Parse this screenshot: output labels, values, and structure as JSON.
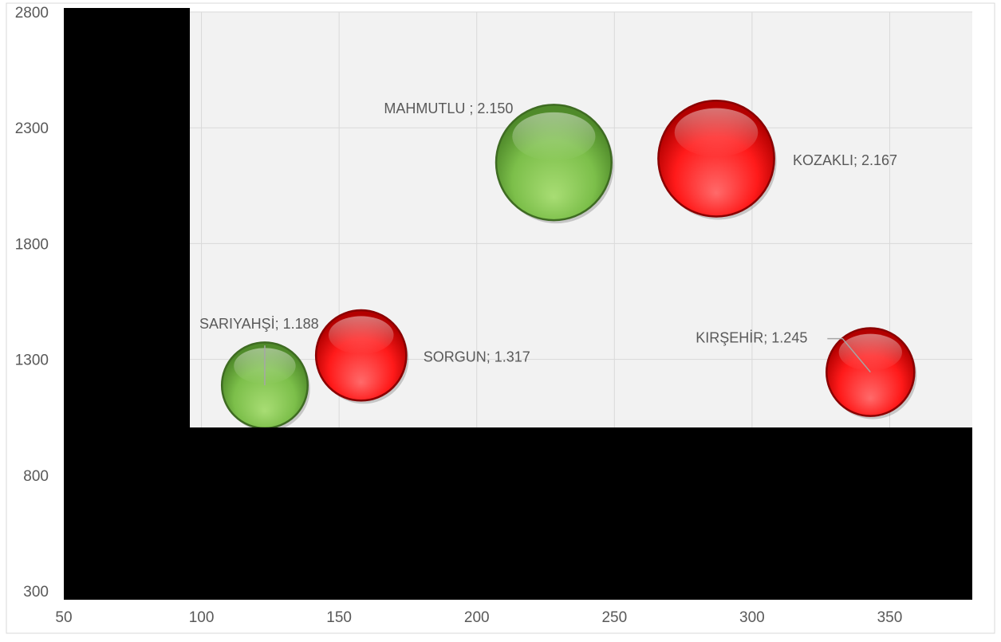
{
  "chart_data": {
    "type": "bubble",
    "xlim": [
      50,
      380
    ],
    "ylim": [
      300,
      2800
    ],
    "x_ticks": [
      "50",
      "100",
      "150",
      "200",
      "250",
      "300",
      "350"
    ],
    "y_ticks": [
      "300",
      "800",
      "1300",
      "1800",
      "2300",
      "2800"
    ],
    "grid": true,
    "colors": {
      "green": "#7cbf4a",
      "red": "#ff1a1a",
      "plot_bg": "#f2f2f2",
      "grid": "#d9d9d9",
      "label": "#595959"
    },
    "points": [
      {
        "label": "SARIYAHŞİ; 1.188",
        "x": 123,
        "y": 1188,
        "size": 1188,
        "color": "green"
      },
      {
        "label": "SORGUN; 1.317",
        "x": 158,
        "y": 1317,
        "size": 1317,
        "color": "red"
      },
      {
        "label": "MAHMUTLU ; 2.150",
        "x": 228,
        "y": 2150,
        "size": 2150,
        "color": "green"
      },
      {
        "label": "KOZAKLI; 2.167",
        "x": 287,
        "y": 2167,
        "size": 2167,
        "color": "red"
      },
      {
        "label": "KIRŞEHİR; 1.245",
        "x": 343,
        "y": 1245,
        "size": 1245,
        "color": "red"
      }
    ]
  }
}
